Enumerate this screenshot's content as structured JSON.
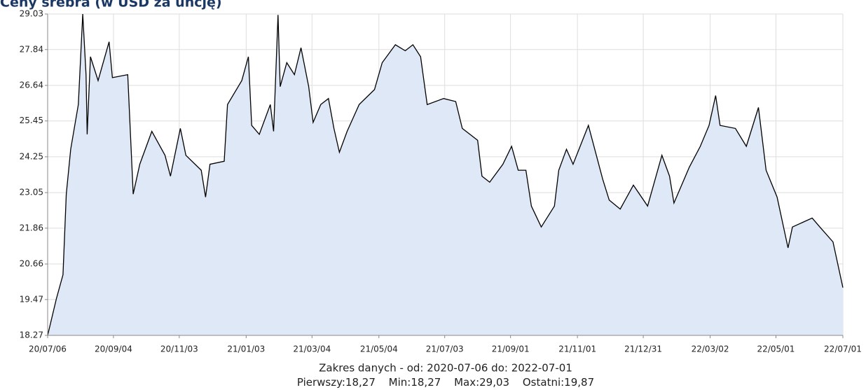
{
  "chart_data": {
    "type": "area",
    "title": "Ceny srebra (w USD za uncję)",
    "subtitle": "Zakres danych - od: 2020-07-06 do: 2022-07-01",
    "stats": [
      "Pierwszy:18,27",
      "Min:18,27",
      "Max:29,03",
      "Ostatni:19,87"
    ],
    "color": "#000000",
    "fill": "#dfe8f6",
    "grid": true,
    "ylim": [
      18.27,
      29.03
    ],
    "yticks": [
      18.27,
      19.47,
      20.66,
      21.86,
      23.05,
      24.25,
      25.45,
      26.64,
      27.84,
      29.03
    ],
    "xlim": [
      "20/07/06",
      "22/07/01"
    ],
    "xticks": [
      "20/07/06",
      "20/09/04",
      "20/11/03",
      "21/01/03",
      "21/03/04",
      "21/05/04",
      "21/07/03",
      "21/09/01",
      "21/11/01",
      "21/12/31",
      "22/03/02",
      "22/05/01",
      "22/07/01"
    ],
    "x": [
      "20/07/06",
      "20/07/14",
      "20/07/20",
      "20/07/23",
      "20/07/27",
      "20/08/03",
      "20/08/07",
      "20/08/10",
      "20/08/11",
      "20/08/14",
      "20/08/21",
      "20/08/31",
      "20/09/03",
      "20/09/17",
      "20/09/22",
      "20/09/28",
      "20/10/09",
      "20/10/21",
      "20/10/26",
      "20/11/04",
      "20/11/09",
      "20/11/23",
      "20/11/27",
      "20/12/01",
      "20/12/14",
      "20/12/17",
      "20/12/30",
      "21/01/05",
      "21/01/08",
      "21/01/15",
      "21/01/25",
      "21/01/28",
      "21/02/01",
      "21/02/03",
      "21/02/09",
      "21/02/16",
      "21/02/22",
      "21/03/01",
      "21/03/05",
      "21/03/12",
      "21/03/19",
      "21/03/24",
      "21/03/29",
      "21/04/05",
      "21/04/16",
      "21/04/30",
      "21/05/07",
      "21/05/19",
      "21/05/28",
      "21/06/04",
      "21/06/11",
      "21/06/17",
      "21/07/02",
      "21/07/13",
      "21/07/19",
      "21/08/02",
      "21/08/06",
      "21/08/13",
      "21/08/25",
      "21/09/02",
      "21/09/08",
      "21/09/15",
      "21/09/20",
      "21/09/29",
      "21/10/11",
      "21/10/15",
      "21/10/22",
      "21/10/28",
      "21/11/11",
      "21/11/24",
      "21/11/30",
      "21/12/10",
      "21/12/22",
      "22/01/04",
      "22/01/17",
      "22/01/24",
      "22/01/28",
      "22/02/11",
      "22/02/21",
      "22/03/01",
      "22/03/07",
      "22/03/11",
      "22/03/25",
      "22/04/04",
      "22/04/15",
      "22/04/22",
      "22/05/02",
      "22/05/12",
      "22/05/16",
      "22/06/03",
      "22/06/10",
      "22/06/22",
      "22/07/01"
    ],
    "values": [
      18.27,
      19.5,
      20.3,
      23.0,
      24.5,
      26.0,
      29.03,
      27.0,
      25.0,
      27.6,
      26.8,
      28.1,
      26.9,
      27.0,
      23.0,
      24.0,
      25.1,
      24.3,
      23.6,
      25.2,
      24.3,
      23.8,
      22.9,
      24.0,
      24.1,
      26.0,
      26.8,
      27.6,
      25.3,
      25.0,
      26.0,
      25.1,
      29.0,
      26.6,
      27.4,
      27.0,
      27.9,
      26.6,
      25.4,
      26.0,
      26.2,
      25.2,
      24.4,
      25.1,
      26.0,
      26.5,
      27.4,
      28.0,
      27.8,
      28.0,
      27.6,
      26.0,
      26.2,
      26.1,
      25.2,
      24.8,
      23.6,
      23.4,
      24.0,
      24.6,
      23.8,
      23.8,
      22.6,
      21.9,
      22.6,
      23.8,
      24.5,
      24.0,
      25.3,
      23.5,
      22.8,
      22.5,
      23.3,
      22.6,
      24.3,
      23.6,
      22.7,
      23.9,
      24.6,
      25.3,
      26.3,
      25.3,
      25.2,
      24.6,
      25.9,
      23.8,
      22.9,
      21.2,
      21.9,
      22.2,
      21.9,
      21.4,
      19.87
    ]
  }
}
